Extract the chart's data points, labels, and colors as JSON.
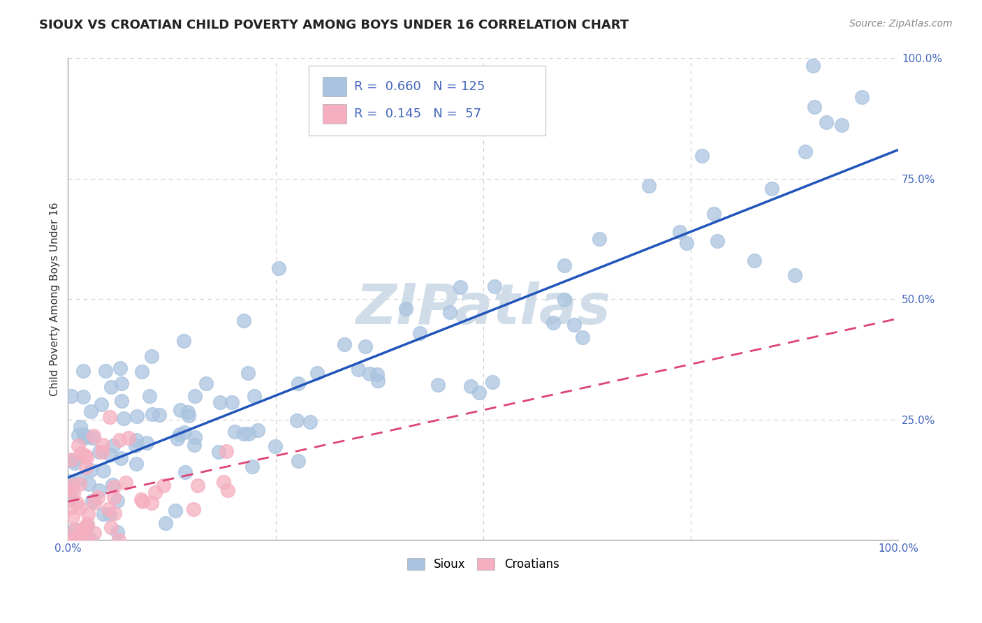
{
  "title": "SIOUX VS CROATIAN CHILD POVERTY AMONG BOYS UNDER 16 CORRELATION CHART",
  "source": "Source: ZipAtlas.com",
  "ylabel": "Child Poverty Among Boys Under 16",
  "sioux_R": 0.66,
  "sioux_N": 125,
  "croatian_R": 0.145,
  "croatian_N": 57,
  "sioux_color": "#aac4df",
  "croatian_color": "#f5afc0",
  "sioux_line_color": "#2255bb",
  "croatian_line_color": "#dd4477",
  "watermark": "ZIPatlas",
  "watermark_color": "#d0dde8",
  "background_color": "#ffffff",
  "tick_color": "#4466bb",
  "grid_color": "#cccccc",
  "xticklabels": [
    "0.0%",
    "",
    "",
    "",
    "100.0%"
  ],
  "yticklabels": [
    "",
    "25.0%",
    "50.0%",
    "75.0%",
    "100.0%"
  ]
}
